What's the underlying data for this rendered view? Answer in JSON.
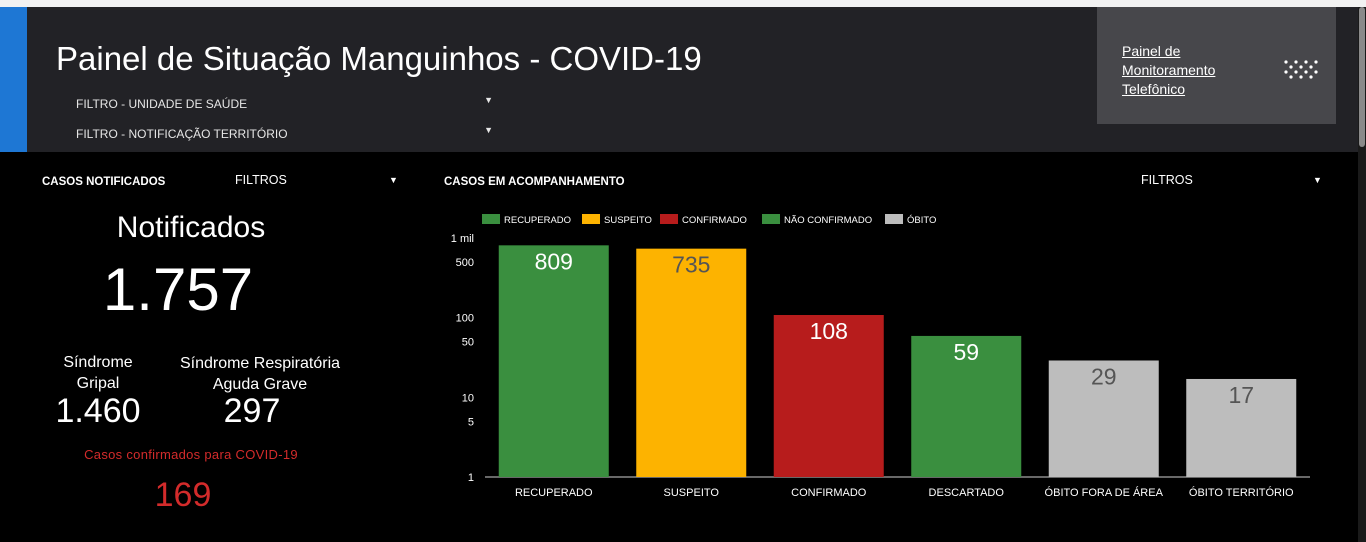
{
  "header": {
    "title": "Painel de Situação Manguinhos - COVID-19",
    "accent_color": "#1e77d4",
    "filter_unidade": "FILTRO - UNIDADE DE SAÚDE",
    "filter_territorio": "FILTRO - NOTIFICAÇÃO TERRITÓRIO",
    "link_text": "Painel de Monitoramento Telefônico",
    "link_icon": "dotted-grid-icon"
  },
  "left_panel": {
    "section_title": "CASOS NOTIFICADOS",
    "filter_label": "FILTROS",
    "notified_label": "Notificados",
    "notified_value": "1.757",
    "sg_label": "Síndrome Gripal",
    "sg_value": "1.460",
    "srag_label": "Síndrome Respiratória Aguda Grave",
    "srag_value": "297",
    "confirmed_label": "Casos confirmados para COVID-19",
    "confirmed_value": "169",
    "confirmed_color": "#d32b2b"
  },
  "right_panel": {
    "section_title": "CASOS EM ACOMPANHAMENTO",
    "filter_label": "FILTROS"
  },
  "chart_data": {
    "type": "bar",
    "scale": "log",
    "categories": [
      "RECUPERADO",
      "SUSPEITO",
      "CONFIRMADO",
      "DESCARTADO",
      "ÓBITO FORA DE ÁREA",
      "ÓBITO TERRITÓRIO"
    ],
    "values": [
      809,
      735,
      108,
      59,
      29,
      17
    ],
    "bar_colors": [
      "#3a8f3f",
      "#fdb300",
      "#b71c1c",
      "#3a8f3f",
      "#bdbdbd",
      "#bdbdbd"
    ],
    "label_colors": [
      "#ffffff",
      "#555555",
      "#ffffff",
      "#ffffff",
      "#555555",
      "#555555"
    ],
    "legend": [
      {
        "name": "RECUPERADO",
        "color": "#3a8f3f"
      },
      {
        "name": "SUSPEITO",
        "color": "#fdb300"
      },
      {
        "name": "CONFIRMADO",
        "color": "#b71c1c"
      },
      {
        "name": "NÃO CONFIRMADO",
        "color": "#3a8f3f"
      },
      {
        "name": "ÓBITO",
        "color": "#bdbdbd"
      }
    ],
    "legend_position": "top",
    "y_ticks": [
      {
        "value": 1,
        "label": "1"
      },
      {
        "value": 5,
        "label": "5"
      },
      {
        "value": 10,
        "label": "10"
      },
      {
        "value": 50,
        "label": "50"
      },
      {
        "value": 100,
        "label": "100"
      },
      {
        "value": 500,
        "label": "500"
      },
      {
        "value": 1000,
        "label": "1 mil"
      }
    ],
    "ylim": [
      1,
      1000
    ],
    "grid": false
  }
}
